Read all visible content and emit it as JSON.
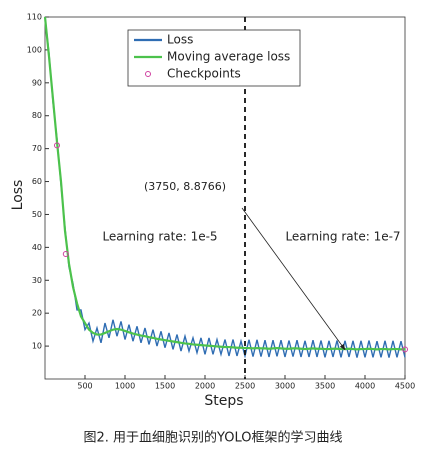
{
  "chart_data": {
    "type": "line",
    "xlabel": "Steps",
    "ylabel": "Loss",
    "caption": "图2. 用于血细胞识别的YOLO框架的学习曲线",
    "x": [
      0,
      50,
      100,
      150,
      200,
      250,
      300,
      350,
      400,
      450,
      500,
      550,
      600,
      650,
      700,
      750,
      800,
      850,
      900,
      950,
      1000,
      1050,
      1100,
      1150,
      1200,
      1250,
      1300,
      1350,
      1400,
      1450,
      1500,
      1550,
      1600,
      1650,
      1700,
      1750,
      1800,
      1850,
      1900,
      1950,
      2000,
      2050,
      2100,
      2150,
      2200,
      2250,
      2300,
      2350,
      2400,
      2450,
      2500,
      2550,
      2600,
      2650,
      2700,
      2750,
      2800,
      2850,
      2900,
      2950,
      3000,
      3050,
      3100,
      3150,
      3200,
      3250,
      3300,
      3350,
      3400,
      3450,
      3500,
      3550,
      3600,
      3650,
      3700,
      3750,
      3800,
      3850,
      3900,
      3950,
      4000,
      4050,
      4100,
      4150,
      4200,
      4250,
      4300,
      4350,
      4400,
      4450,
      4500
    ],
    "series": [
      {
        "name": "Loss",
        "color": "#2f6db3",
        "values": [
          110,
          99,
          84,
          73,
          59,
          46,
          34,
          29,
          21,
          21,
          15,
          17,
          11.5,
          15.5,
          11,
          17,
          12.5,
          18,
          13,
          17.5,
          12,
          16.5,
          11.5,
          16,
          11,
          15.5,
          10.5,
          15,
          10,
          14.5,
          9.5,
          14,
          9,
          13.5,
          8.5,
          13,
          8.5,
          12.5,
          8,
          12.5,
          7.5,
          12.5,
          7.5,
          12,
          7.5,
          12,
          7,
          12,
          7,
          11.5,
          7,
          11.9,
          6.8,
          11.9,
          6.8,
          11.8,
          6.7,
          11.8,
          6.9,
          11.8,
          6.7,
          11.7,
          6.8,
          11.8,
          6.7,
          11.6,
          6.7,
          11.8,
          6.7,
          11.7,
          6.6,
          11.6,
          6.7,
          11.7,
          6.6,
          11.6,
          6.7,
          11.6,
          6.5,
          11.6,
          6.6,
          11.7,
          6.6,
          11.5,
          6.6,
          11.6,
          6.5,
          11.6,
          6.6,
          11.5,
          6.6
        ]
      },
      {
        "name": "Moving average loss",
        "color": "#4cc24c",
        "values": [
          110,
          98,
          85,
          72,
          60,
          45,
          35,
          28,
          23,
          19,
          17,
          15,
          14,
          13.5,
          13.5,
          14,
          14.5,
          15,
          15.2,
          15,
          14.6,
          14.2,
          13.8,
          13.5,
          13.2,
          13,
          12.7,
          12.5,
          12.2,
          12,
          11.8,
          11.6,
          11.4,
          11.2,
          11,
          10.8,
          10.7,
          10.5,
          10.4,
          10.3,
          10.2,
          10.1,
          10,
          9.9,
          9.8,
          9.7,
          9.7,
          9.6,
          9.5,
          9.5,
          9.4,
          9.4,
          9.3,
          9.4,
          9.3,
          9.3,
          9.2,
          9.3,
          9.4,
          9.3,
          9.2,
          9.2,
          9.3,
          9.3,
          9.2,
          9.1,
          9.2,
          9.3,
          9.2,
          9.2,
          9.1,
          9.1,
          9.2,
          9.2,
          9.1,
          9.1,
          9.2,
          9.1,
          9.0,
          9.1,
          9.1,
          9.2,
          9.1,
          9.0,
          9.1,
          9.1,
          9.0,
          9.1,
          9.1,
          9.0,
          9.1
        ]
      }
    ],
    "checkpoints": {
      "name": "Checkpoints",
      "color": "#d040a0",
      "x": [
        150,
        260,
        4500
      ],
      "values": [
        71,
        38,
        9
      ]
    },
    "vline": 2500,
    "annotations": [
      {
        "text": "Learning rate: 1e-5"
      },
      {
        "text": "Learning rate: 1e-7"
      },
      {
        "text": "(3750, 8.8766)",
        "x": 3750,
        "y": 8.8766
      }
    ],
    "xlim": [
      0,
      4500
    ],
    "ylim": [
      0,
      110
    ],
    "xticks": [
      500,
      1000,
      1500,
      2000,
      2500,
      3000,
      3500,
      4000,
      4500
    ],
    "yticks": [
      10,
      20,
      30,
      40,
      50,
      60,
      70,
      80,
      90,
      100,
      110
    ]
  }
}
